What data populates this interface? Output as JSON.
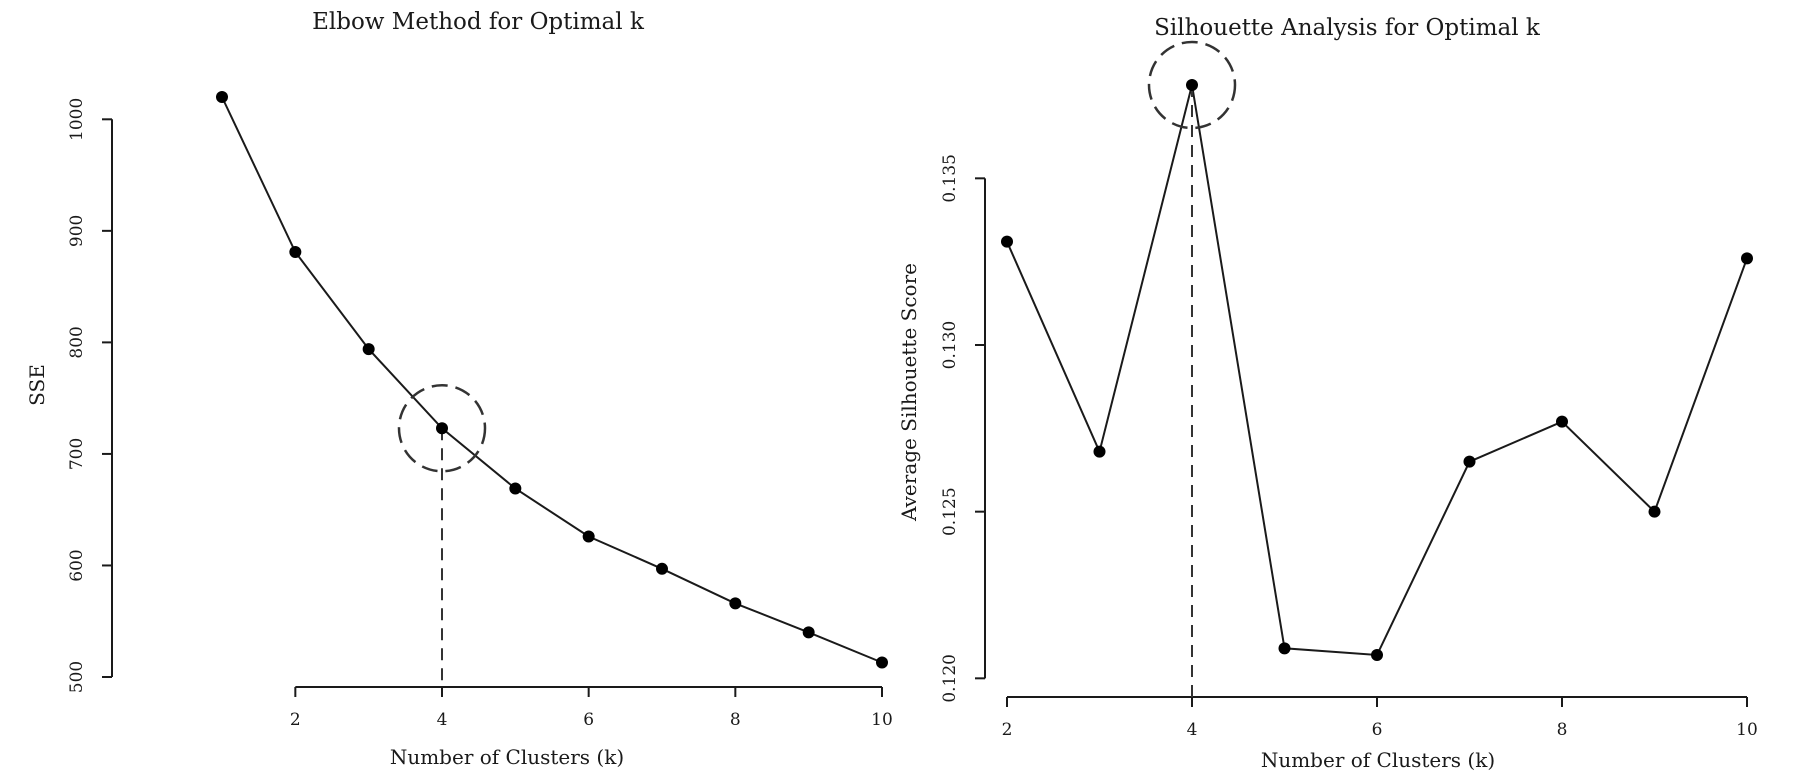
{
  "chart_data": [
    {
      "type": "line",
      "title": "Elbow Method for Optimal k",
      "xlabel": "Number of Clusters (k)",
      "ylabel": "SSE",
      "x": [
        1,
        2,
        3,
        4,
        5,
        6,
        7,
        8,
        9,
        10
      ],
      "values": [
        1020,
        881,
        794,
        723,
        669,
        626,
        597,
        566,
        540,
        513
      ],
      "xlim": [
        1,
        10
      ],
      "ylim": [
        500,
        1020
      ],
      "xticks": [
        2,
        4,
        6,
        8,
        10
      ],
      "yticks": [
        500,
        600,
        700,
        800,
        900,
        1000
      ],
      "highlight_x": 4,
      "grid": false,
      "colors": {
        "line": "#1a1a1a",
        "point": "#000000",
        "highlight": "#333333"
      }
    },
    {
      "type": "line",
      "title": "Silhouette Analysis for Optimal k",
      "xlabel": "Number of Clusters (k)",
      "ylabel": "Average Silhouette Score",
      "x": [
        2,
        3,
        4,
        5,
        6,
        7,
        8,
        9,
        10
      ],
      "values": [
        0.1331,
        0.1268,
        0.1378,
        0.1209,
        0.1207,
        0.1265,
        0.1277,
        0.125,
        0.1326
      ],
      "xlim": [
        2,
        10
      ],
      "ylim": [
        0.1207,
        0.1378
      ],
      "xticks": [
        2,
        4,
        6,
        8,
        10
      ],
      "yticks": [
        0.12,
        0.125,
        0.13,
        0.135
      ],
      "ytick_labels": [
        "0.120",
        "0.125",
        "0.130",
        "0.135"
      ],
      "highlight_x": 4,
      "grid": false,
      "colors": {
        "line": "#1a1a1a",
        "point": "#000000",
        "highlight": "#333333"
      }
    }
  ]
}
